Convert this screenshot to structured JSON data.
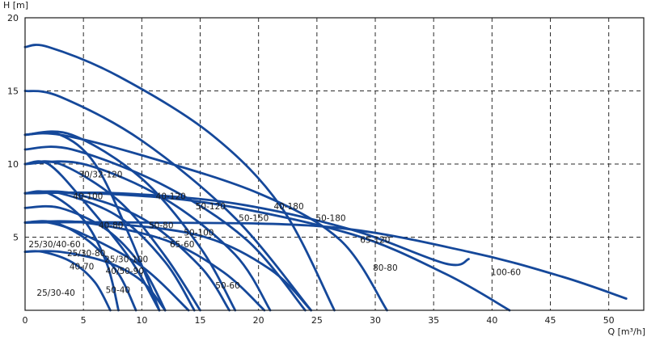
{
  "chart_data": {
    "type": "line",
    "xlabel": "Q [m³/h]",
    "ylabel": "H [m]",
    "xlim": [
      0,
      53
    ],
    "ylim": [
      0,
      20
    ],
    "xticks": [
      0,
      5,
      10,
      15,
      20,
      25,
      30,
      35,
      40,
      45,
      50
    ],
    "yticks": [
      5,
      10,
      15,
      20
    ],
    "grid": true,
    "line_color": "#15489a",
    "series": [
      {
        "name": "25/30-40",
        "x": [
          0,
          1.5,
          4,
          6,
          7.3
        ],
        "y": [
          4,
          4,
          3.3,
          1.9,
          0
        ]
      },
      {
        "name": "40-70",
        "x": [
          0,
          2.5,
          5.5,
          8,
          9.5
        ],
        "y": [
          6,
          6,
          4.7,
          2.5,
          0
        ]
      },
      {
        "name": "25/30-80",
        "x": [
          0,
          2,
          5,
          7,
          8
        ],
        "y": [
          8,
          8,
          6.2,
          3.2,
          0
        ]
      },
      {
        "name": "50-40",
        "x": [
          0,
          3,
          7,
          10,
          12
        ],
        "y": [
          4,
          4,
          3.3,
          2,
          0
        ]
      },
      {
        "name": "40/50-90",
        "x": [
          0,
          3,
          7,
          10,
          12
        ],
        "y": [
          7,
          7,
          5.5,
          3,
          0
        ]
      },
      {
        "name": "25/30/40-60",
        "x": [
          0,
          2,
          5,
          10,
          14
        ],
        "y": [
          6,
          6,
          5.2,
          3,
          0
        ]
      },
      {
        "name": "25/30-100",
        "x": [
          0,
          2,
          5,
          9,
          11.5
        ],
        "y": [
          10,
          10,
          7.5,
          3.5,
          0
        ]
      },
      {
        "name": "30/32-120",
        "x": [
          0,
          3,
          6,
          9,
          11.5
        ],
        "y": [
          12,
          12,
          10,
          5,
          0
        ]
      },
      {
        "name": "40-80",
        "x": [
          0,
          3,
          8,
          12,
          14.5
        ],
        "y": [
          8,
          8,
          6.4,
          3.3,
          0
        ]
      },
      {
        "name": "40-100",
        "x": [
          0,
          3,
          8,
          12,
          15
        ],
        "y": [
          10,
          10,
          7.5,
          3.7,
          0
        ]
      },
      {
        "name": "50-60",
        "x": [
          0,
          5,
          12,
          17,
          20.5
        ],
        "y": [
          6,
          6,
          4.8,
          2.6,
          0
        ]
      },
      {
        "name": "50-80",
        "x": [
          0,
          4,
          10,
          15,
          17.5
        ],
        "y": [
          8,
          8,
          6.3,
          3,
          0
        ]
      },
      {
        "name": "40-120",
        "x": [
          0,
          4,
          10,
          15,
          18
        ],
        "y": [
          12,
          12,
          9,
          4.3,
          0
        ]
      },
      {
        "name": "50-100",
        "x": [
          0,
          5,
          12,
          18,
          21
        ],
        "y": [
          10,
          10,
          7.6,
          3.8,
          0
        ]
      },
      {
        "name": "65-60",
        "x": [
          0,
          6,
          15,
          21,
          24.5
        ],
        "y": [
          6,
          6,
          5.1,
          2.8,
          0
        ]
      },
      {
        "name": "50-120",
        "x": [
          0,
          4,
          12,
          19,
          24
        ],
        "y": [
          11,
          11,
          8.5,
          4.8,
          0
        ]
      },
      {
        "name": "50-150",
        "x": [
          0,
          3,
          10,
          18,
          24.5
        ],
        "y": [
          15,
          14.6,
          11.6,
          6.3,
          0
        ]
      },
      {
        "name": "80-80",
        "x": [
          0,
          8,
          18,
          28,
          36,
          38
        ],
        "y": [
          8,
          8,
          7.3,
          5.5,
          3.2,
          3.5
        ]
      },
      {
        "name": "40-180",
        "x": [
          0,
          2,
          8,
          16,
          22,
          26.5
        ],
        "y": [
          18,
          18,
          16,
          12,
          7,
          0
        ]
      },
      {
        "name": "50-180",
        "x": [
          0,
          3,
          10,
          20,
          27,
          31
        ],
        "y": [
          12,
          12,
          10.6,
          8,
          4.8,
          0
        ]
      },
      {
        "name": "65-120",
        "x": [
          0,
          6,
          16,
          28,
          36,
          41.5
        ],
        "y": [
          8,
          8,
          7.3,
          5.2,
          2.5,
          0
        ]
      },
      {
        "name": "100-60",
        "x": [
          0,
          10,
          26,
          38,
          46,
          51.5
        ],
        "y": [
          6,
          6,
          5.7,
          4,
          2.3,
          0.8
        ]
      }
    ],
    "labels": [
      {
        "text": "30/32-120",
        "x": 4.6,
        "y": 9.1
      },
      {
        "text": "40-100",
        "x": 4.1,
        "y": 7.6
      },
      {
        "text": "40-120",
        "x": 11.2,
        "y": 7.6
      },
      {
        "text": "50-120",
        "x": 14.6,
        "y": 6.9
      },
      {
        "text": "40-180",
        "x": 21.3,
        "y": 6.9
      },
      {
        "text": "50-150",
        "x": 18.3,
        "y": 6.1
      },
      {
        "text": "50-180",
        "x": 24.9,
        "y": 6.1
      },
      {
        "text": "40-80",
        "x": 6.3,
        "y": 5.6
      },
      {
        "text": "50-80",
        "x": 10.6,
        "y": 5.6
      },
      {
        "text": "50-100",
        "x": 13.6,
        "y": 5.1
      },
      {
        "text": "65-120",
        "x": 28.7,
        "y": 4.6
      },
      {
        "text": "25/30/40-60",
        "x": 0.3,
        "y": 4.3
      },
      {
        "text": "65-60",
        "x": 12.4,
        "y": 4.3
      },
      {
        "text": "25/30-80",
        "x": 3.6,
        "y": 3.7
      },
      {
        "text": "25/30-100",
        "x": 6.8,
        "y": 3.3
      },
      {
        "text": "80-80",
        "x": 29.8,
        "y": 2.7
      },
      {
        "text": "100-60",
        "x": 39.9,
        "y": 2.4
      },
      {
        "text": "40-70",
        "x": 3.8,
        "y": 2.8
      },
      {
        "text": "40/50-90",
        "x": 6.9,
        "y": 2.5
      },
      {
        "text": "50-40",
        "x": 6.9,
        "y": 1.2
      },
      {
        "text": "50-60",
        "x": 16.3,
        "y": 1.5
      },
      {
        "text": "25/30-40",
        "x": 1.0,
        "y": 1.0
      }
    ]
  }
}
